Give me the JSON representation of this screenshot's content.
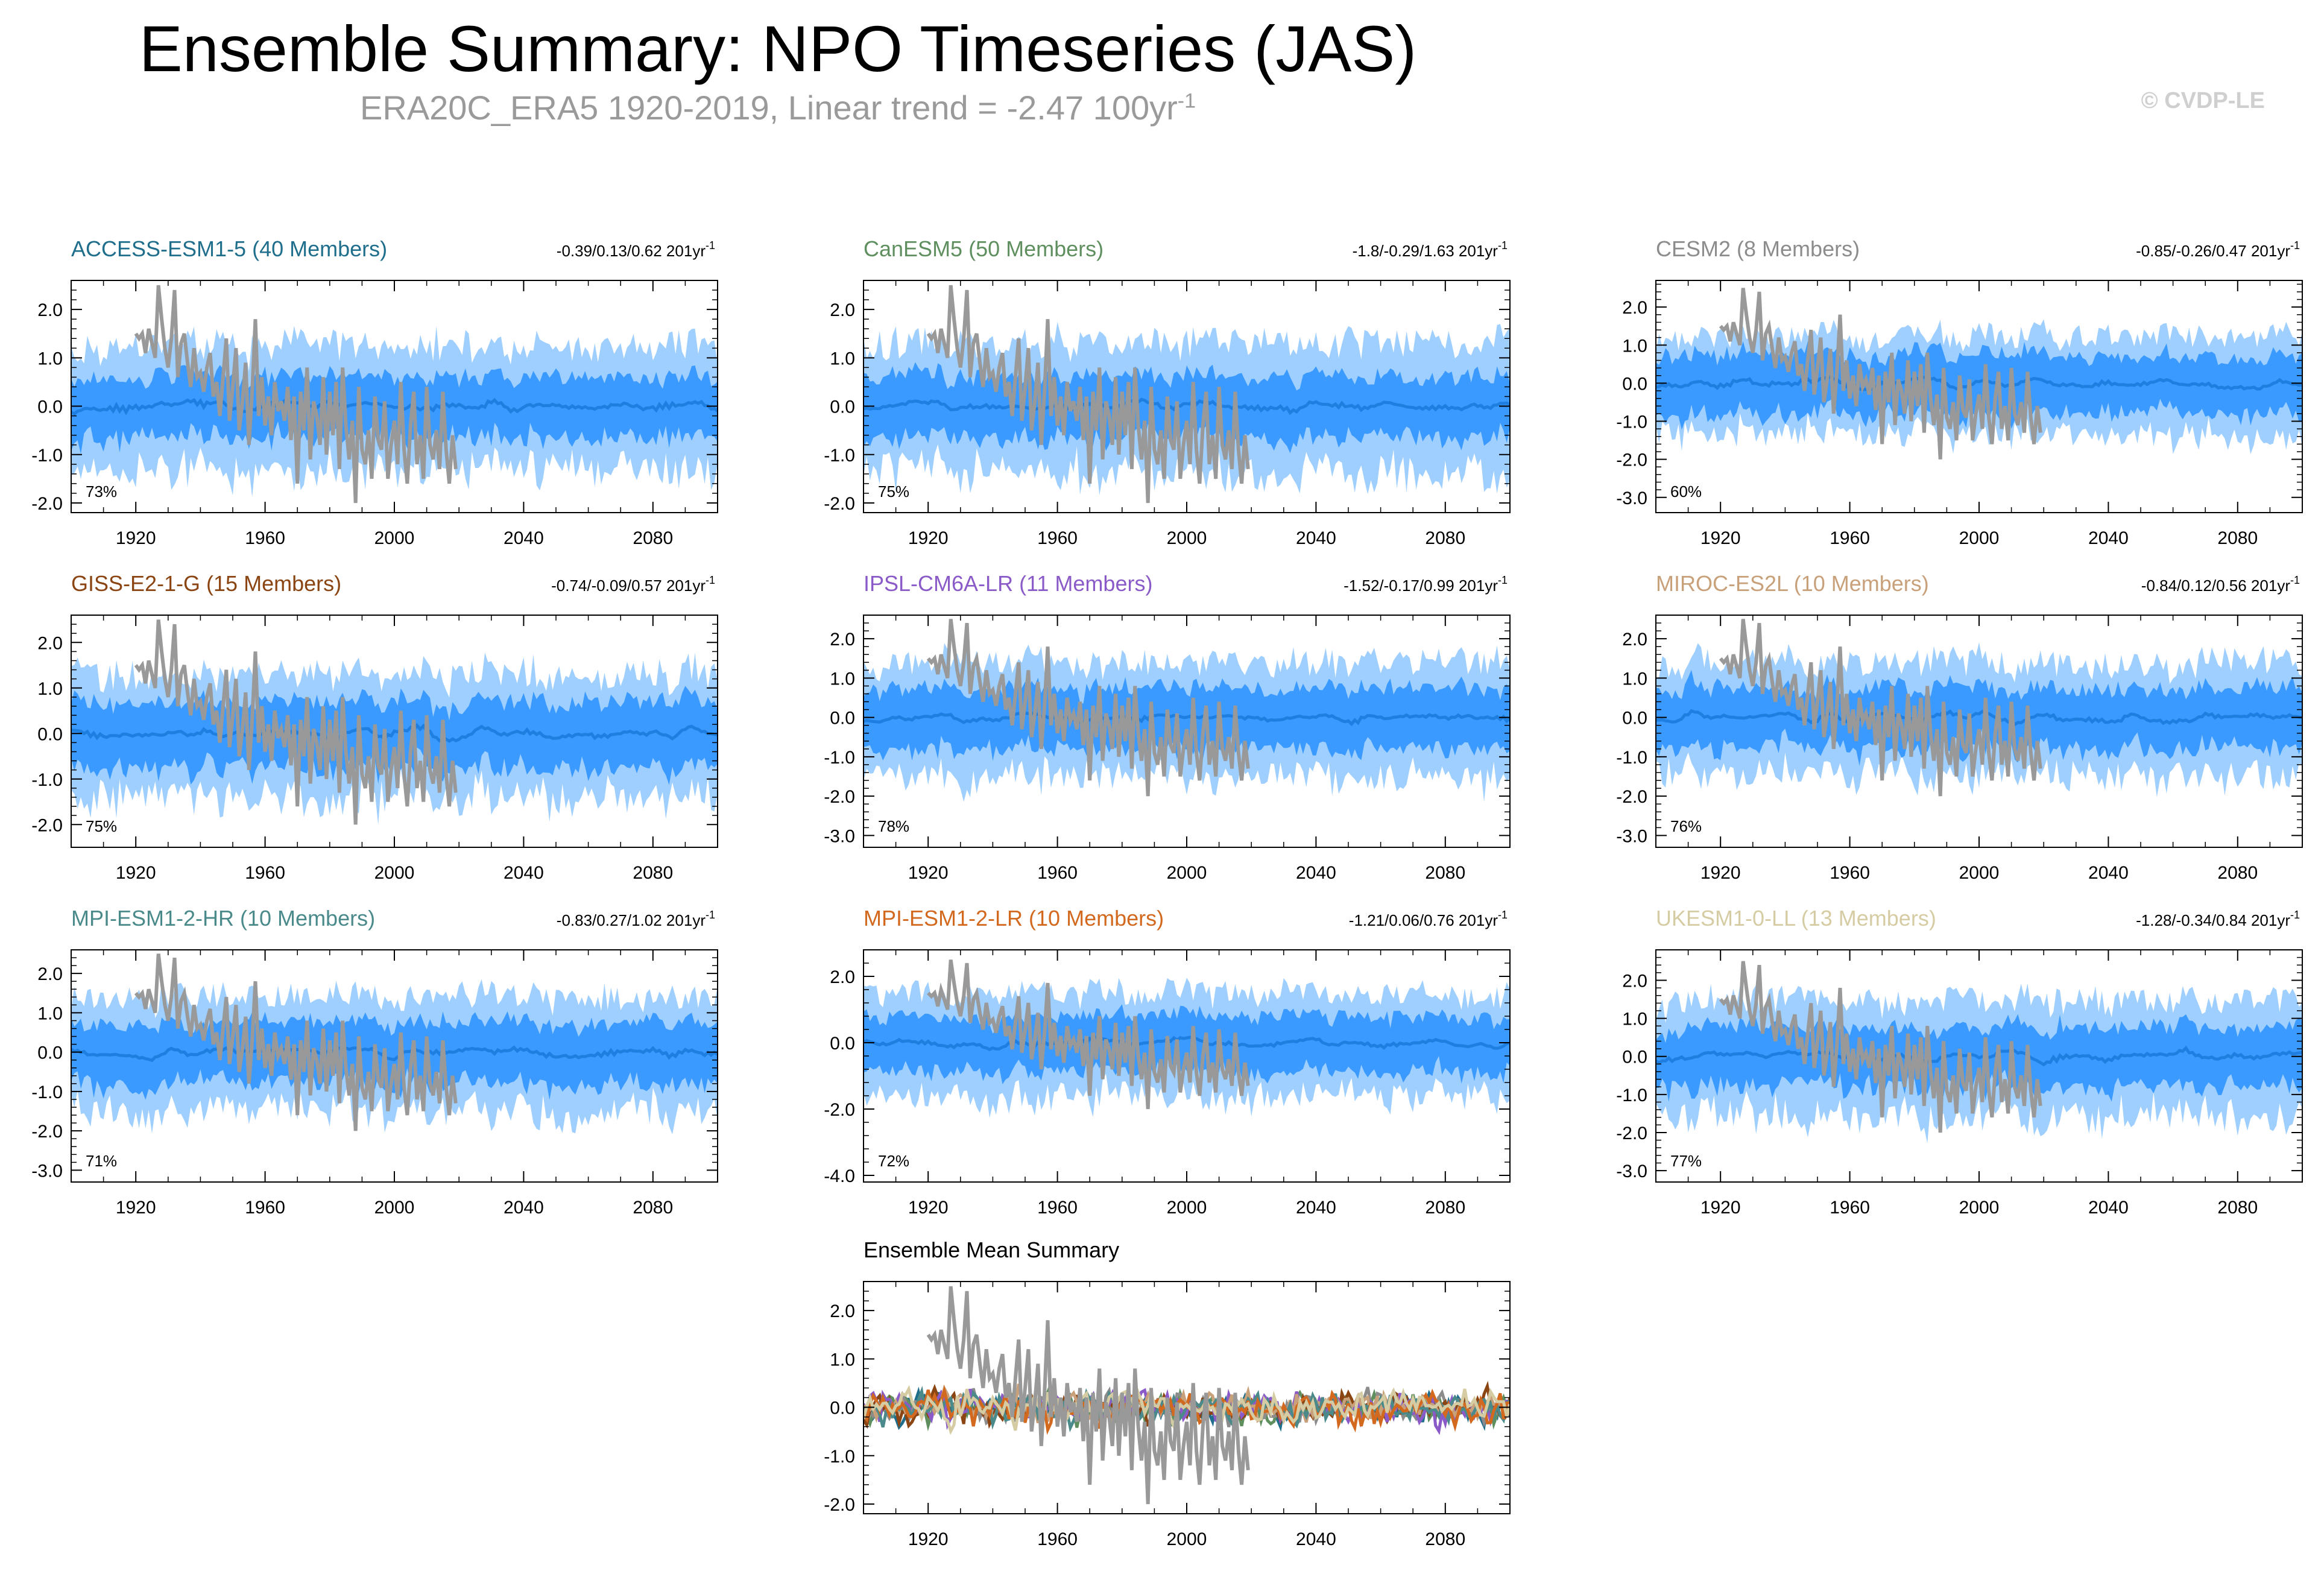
{
  "page": {
    "title": "Ensemble Summary: NPO Timeseries (JAS)",
    "subtitle_main": "ERA20C_ERA5 1920-2019, Linear trend = -2.47 100yr",
    "subtitle_exp": "-1",
    "copyright": "© CVDP-LE"
  },
  "colors": {
    "outer_band": "#9fcfff",
    "inner_band": "#3a9aff",
    "ensemble_mean": "#1e7fe0",
    "observations": "#999999",
    "axis": "#000000"
  },
  "chart_data": [
    {
      "type": "area",
      "id": "access",
      "title": "ACCESS-ESM1-5 (40 Members)",
      "title_color": "#1f6e8c",
      "stats": "-0.39/0.13/0.62 201yr",
      "stats_exp": "-1",
      "pct_label": "73%",
      "xlim": [
        1900,
        2100
      ],
      "ylim": [
        -2.2,
        2.6
      ],
      "yticks": [
        "2.0",
        "1.0",
        "0.0",
        "-1.0",
        "-2.0"
      ],
      "yvalues": [
        2,
        1,
        0,
        -1,
        -2
      ],
      "xticks": [
        "1920",
        "1960",
        "2000",
        "2040",
        "2080"
      ],
      "outer_half_width": 1.25,
      "inner_half_width": 0.6,
      "mean_amplitude": 0.18,
      "seed": 11
    },
    {
      "type": "area",
      "id": "canesm",
      "title": "CanESM5 (50 Members)",
      "title_color": "#5f8f5f",
      "stats": "-1.8/-0.29/1.63 201yr",
      "stats_exp": "-1",
      "pct_label": "75%",
      "xlim": [
        1900,
        2100
      ],
      "ylim": [
        -2.2,
        2.6
      ],
      "yticks": [
        "2.0",
        "1.0",
        "0.0",
        "-1.0",
        "-2.0"
      ],
      "yvalues": [
        2,
        1,
        0,
        -1,
        -2
      ],
      "xticks": [
        "1920",
        "1960",
        "2000",
        "2040",
        "2080"
      ],
      "outer_half_width": 1.3,
      "inner_half_width": 0.62,
      "mean_amplitude": 0.15,
      "seed": 23
    },
    {
      "type": "area",
      "id": "cesm2",
      "title": "CESM2 (8 Members)",
      "title_color": "#8c8c8c",
      "stats": "-0.85/-0.26/0.47 201yr",
      "stats_exp": "-1",
      "pct_label": "60%",
      "xlim": [
        1900,
        2100
      ],
      "ylim": [
        -3.4,
        2.7
      ],
      "yticks": [
        "2.0",
        "1.0",
        "0.0",
        "-1.0",
        "-2.0",
        "-3.0"
      ],
      "yvalues": [
        2,
        1,
        0,
        -1,
        -2,
        -3
      ],
      "xticks": [
        "1920",
        "1960",
        "2000",
        "2040",
        "2080"
      ],
      "outer_half_width": 1.25,
      "inner_half_width": 0.75,
      "mean_amplitude": 0.2,
      "seed": 37
    },
    {
      "type": "area",
      "id": "giss",
      "title": "GISS-E2-1-G (15 Members)",
      "title_color": "#8b4513",
      "stats": "-0.74/-0.09/0.57 201yr",
      "stats_exp": "-1",
      "pct_label": "75%",
      "xlim": [
        1900,
        2100
      ],
      "ylim": [
        -2.5,
        2.6
      ],
      "yticks": [
        "2.0",
        "1.0",
        "0.0",
        "-1.0",
        "-2.0"
      ],
      "yvalues": [
        2,
        1,
        0,
        -1,
        -2
      ],
      "xticks": [
        "1920",
        "1960",
        "2000",
        "2040",
        "2080"
      ],
      "outer_half_width": 1.3,
      "inner_half_width": 0.7,
      "mean_amplitude": 0.2,
      "seed": 41
    },
    {
      "type": "area",
      "id": "ipsl",
      "title": "IPSL-CM6A-LR (11 Members)",
      "title_color": "#8a5ac8",
      "stats": "-1.52/-0.17/0.99 201yr",
      "stats_exp": "-1",
      "pct_label": "78%",
      "xlim": [
        1900,
        2100
      ],
      "ylim": [
        -3.3,
        2.6
      ],
      "yticks": [
        "2.0",
        "1.0",
        "0.0",
        "-1.0",
        "-2.0",
        "-3.0"
      ],
      "yvalues": [
        2,
        1,
        0,
        -1,
        -2,
        -3
      ],
      "xticks": [
        "1920",
        "1960",
        "2000",
        "2040",
        "2080"
      ],
      "outer_half_width": 1.4,
      "inner_half_width": 0.75,
      "mean_amplitude": 0.18,
      "seed": 53
    },
    {
      "type": "area",
      "id": "miroc",
      "title": "MIROC-ES2L (10 Members)",
      "title_color": "#c8a07a",
      "stats": "-0.84/0.12/0.56 201yr",
      "stats_exp": "-1",
      "pct_label": "76%",
      "xlim": [
        1900,
        2100
      ],
      "ylim": [
        -3.3,
        2.6
      ],
      "yticks": [
        "2.0",
        "1.0",
        "0.0",
        "-1.0",
        "-2.0",
        "-3.0"
      ],
      "yvalues": [
        2,
        1,
        0,
        -1,
        -2,
        -3
      ],
      "xticks": [
        "1920",
        "1960",
        "2000",
        "2040",
        "2080"
      ],
      "outer_half_width": 1.4,
      "inner_half_width": 0.75,
      "mean_amplitude": 0.2,
      "seed": 67
    },
    {
      "type": "area",
      "id": "mpihr",
      "title": "MPI-ESM1-2-HR (10 Members)",
      "title_color": "#4a8a8a",
      "stats": "-0.83/0.27/1.02 201yr",
      "stats_exp": "-1",
      "pct_label": "71%",
      "xlim": [
        1900,
        2100
      ],
      "ylim": [
        -3.3,
        2.6
      ],
      "yticks": [
        "2.0",
        "1.0",
        "0.0",
        "-1.0",
        "-2.0",
        "-3.0"
      ],
      "yvalues": [
        2,
        1,
        0,
        -1,
        -2,
        -3
      ],
      "xticks": [
        "1920",
        "1960",
        "2000",
        "2040",
        "2080"
      ],
      "outer_half_width": 1.4,
      "inner_half_width": 0.75,
      "mean_amplitude": 0.2,
      "seed": 79
    },
    {
      "type": "area",
      "id": "mpilr",
      "title": "MPI-ESM1-2-LR (10 Members)",
      "title_color": "#d2691e",
      "stats": "-1.21/0.06/0.76 201yr",
      "stats_exp": "-1",
      "pct_label": "72%",
      "xlim": [
        1900,
        2100
      ],
      "ylim": [
        -4.2,
        2.8
      ],
      "yticks": [
        "2.0",
        "0.0",
        "-2.0",
        "-4.0"
      ],
      "yvalues": [
        2,
        0,
        -2,
        -4
      ],
      "xticks": [
        "1920",
        "1960",
        "2000",
        "2040",
        "2080"
      ],
      "outer_half_width": 1.5,
      "inner_half_width": 0.8,
      "mean_amplitude": 0.2,
      "seed": 83
    },
    {
      "type": "area",
      "id": "ukesm",
      "title": "UKESM1-0-LL (13 Members)",
      "title_color": "#d6cca3",
      "stats": "-1.28/-0.34/0.84 201yr",
      "stats_exp": "-1",
      "pct_label": "77%",
      "xlim": [
        1900,
        2100
      ],
      "ylim": [
        -3.3,
        2.8
      ],
      "yticks": [
        "2.0",
        "1.0",
        "0.0",
        "-1.0",
        "-2.0",
        "-3.0"
      ],
      "yvalues": [
        2,
        1,
        0,
        -1,
        -2,
        -3
      ],
      "xticks": [
        "1920",
        "1960",
        "2000",
        "2040",
        "2080"
      ],
      "outer_half_width": 1.45,
      "inner_half_width": 0.75,
      "mean_amplitude": 0.22,
      "seed": 97
    },
    {
      "type": "line",
      "id": "summary",
      "title": "Ensemble Mean Summary",
      "title_color": "#000000",
      "xlim": [
        1900,
        2100
      ],
      "ylim": [
        -2.2,
        2.6
      ],
      "yticks": [
        "2.0",
        "1.0",
        "0.0",
        "-1.0",
        "-2.0"
      ],
      "yvalues": [
        2,
        1,
        0,
        -1,
        -2
      ],
      "xticks": [
        "1920",
        "1960",
        "2000",
        "2040",
        "2080"
      ],
      "series_colors": [
        "#1f6e8c",
        "#5f8f5f",
        "#8c8c8c",
        "#8b4513",
        "#8a5ac8",
        "#c8a07a",
        "#4a8a8a",
        "#d2691e",
        "#d6cca3"
      ],
      "seed": 101
    }
  ],
  "observations": {
    "name": "ERA20C_ERA5",
    "years": [
      1920,
      1921,
      1922,
      1923,
      1924,
      1925,
      1926,
      1927,
      1928,
      1929,
      1930,
      1931,
      1932,
      1933,
      1934,
      1935,
      1936,
      1937,
      1938,
      1939,
      1940,
      1941,
      1942,
      1943,
      1944,
      1945,
      1946,
      1947,
      1948,
      1949,
      1950,
      1951,
      1952,
      1953,
      1954,
      1955,
      1956,
      1957,
      1958,
      1959,
      1960,
      1961,
      1962,
      1963,
      1964,
      1965,
      1966,
      1967,
      1968,
      1969,
      1970,
      1971,
      1972,
      1973,
      1974,
      1975,
      1976,
      1977,
      1978,
      1979,
      1980,
      1981,
      1982,
      1983,
      1984,
      1985,
      1986,
      1987,
      1988,
      1989,
      1990,
      1991,
      1992,
      1993,
      1994,
      1995,
      1996,
      1997,
      1998,
      1999,
      2000,
      2001,
      2002,
      2003,
      2004,
      2005,
      2006,
      2007,
      2008,
      2009,
      2010,
      2011,
      2012,
      2013,
      2014,
      2015,
      2016,
      2017,
      2018,
      2019
    ],
    "values": [
      1.5,
      1.4,
      1.5,
      1.1,
      1.6,
      1.3,
      1.0,
      2.5,
      1.8,
      1.2,
      0.8,
      1.4,
      2.4,
      0.6,
      1.3,
      1.5,
      0.9,
      0.4,
      1.2,
      0.6,
      0.7,
      0.3,
      0.8,
      1.1,
      0.2,
      0.5,
      -0.2,
      0.6,
      1.4,
      -0.3,
      0.4,
      1.2,
      -0.5,
      0.1,
      0.9,
      -0.8,
      0.3,
      1.8,
      -0.2,
      0.6,
      -0.4,
      0.2,
      -0.6,
      0.5,
      -0.1,
      0.1,
      -0.3,
      0.4,
      -0.7,
      0.2,
      -1.6,
      0.3,
      -0.5,
      0.8,
      -1.1,
      0.1,
      -0.2,
      -0.8,
      0.6,
      -1.0,
      0.3,
      -0.6,
      0.5,
      -1.3,
      0.8,
      -0.4,
      -1.1,
      -0.3,
      -2.0,
      0.4,
      -0.9,
      -1.2,
      -0.5,
      -1.5,
      0.2,
      -0.7,
      -0.9,
      0.1,
      -1.5,
      -0.8,
      -0.3,
      -1.2,
      0.5,
      -0.9,
      -1.6,
      -0.4,
      0.3,
      -1.2,
      -0.6,
      -1.5,
      0.4,
      -0.8,
      -1.1,
      -0.5,
      -1.3,
      0.3,
      -0.9,
      -1.6,
      -0.6,
      -1.3
    ]
  }
}
